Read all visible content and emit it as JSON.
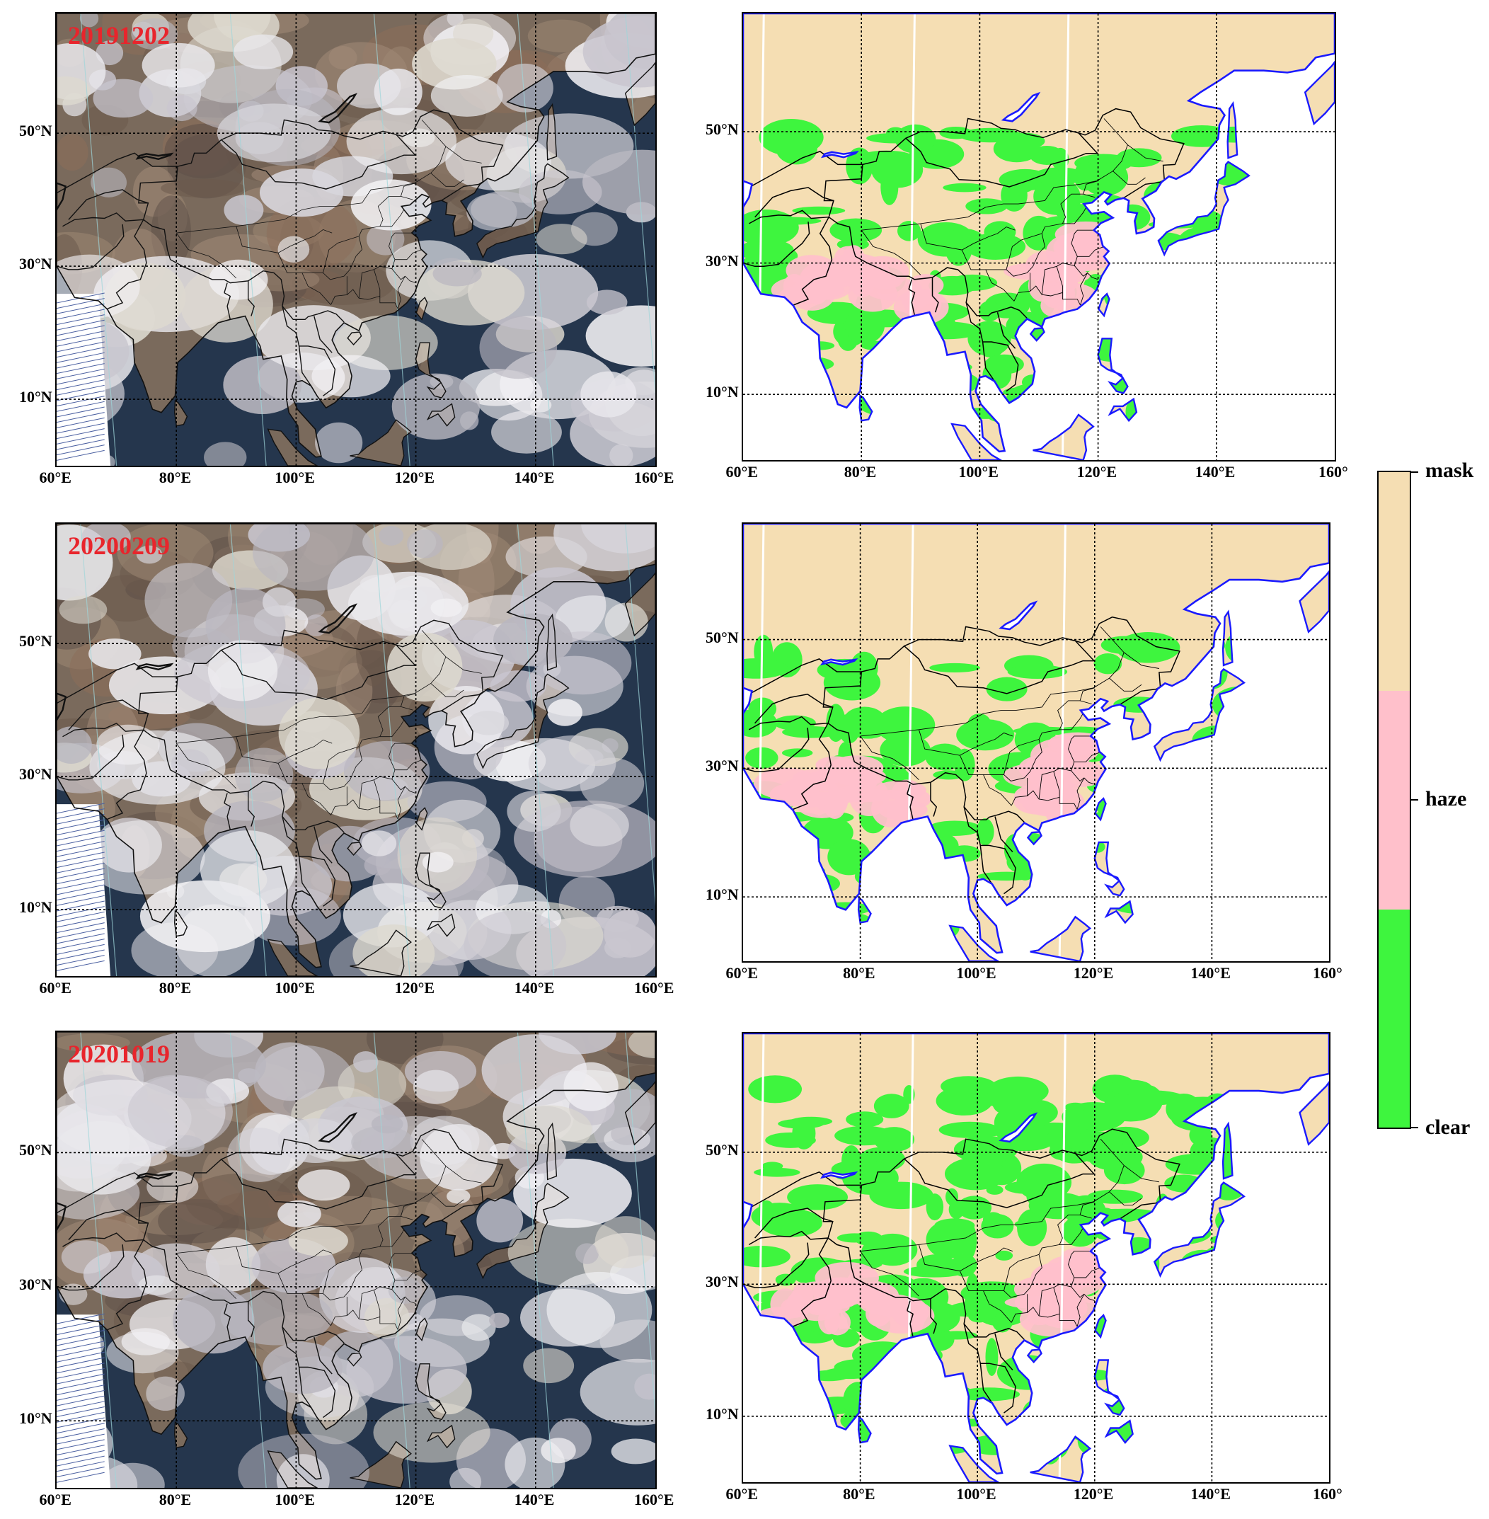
{
  "figure": {
    "rows": [
      {
        "date": "20191202"
      },
      {
        "date": "20200209"
      },
      {
        "date": "20201019"
      }
    ],
    "left_x_ticks": [
      "60°E",
      "80°E",
      "100°E",
      "120°E",
      "140°E",
      "160°E"
    ],
    "right_x_ticks": [
      "60°E",
      "80°E",
      "100°E",
      "120°E",
      "140°E",
      "160°"
    ],
    "y_ticks": [
      "50°N",
      "30°N",
      "10°N"
    ],
    "colorbar": {
      "labels": [
        "mask",
        "haze",
        "clear"
      ],
      "colors": {
        "mask": "#f5deb3",
        "haze": "#ffc0cb",
        "clear": "#3ef53e"
      }
    },
    "colors": {
      "coast": "#1a1aff",
      "border": "#000000",
      "grid": "#000000",
      "date_label": "#e8252c"
    }
  }
}
